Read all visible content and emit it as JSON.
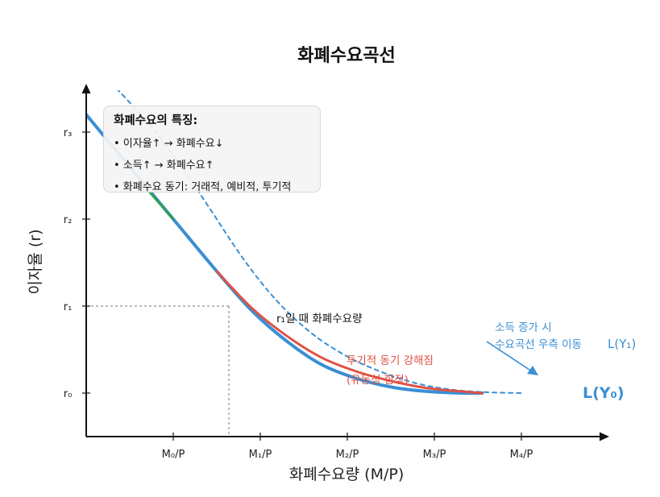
{
  "chart_data": {
    "type": "line",
    "title": "화폐수요곡선",
    "xlabel": "화폐수요량 (M/P)",
    "ylabel": "이자율 (r)",
    "x_ticks": [
      "M₀/P",
      "M₁/P",
      "M₂/P",
      "M₃/P",
      "M₄/P"
    ],
    "y_ticks": [
      "r₀",
      "r₁",
      "r₂",
      "r₃"
    ],
    "xlim": [
      0,
      5.0
    ],
    "ylim": [
      -0.5,
      3.5
    ],
    "series": [
      {
        "name": "L(Y₀)",
        "color": "#3a8fd4",
        "style": "solid",
        "points": [
          [
            -0.25,
            3.5
          ],
          [
            0.5,
            2.6
          ],
          [
            1.0,
            2.0
          ],
          [
            1.5,
            1.4
          ],
          [
            1.9,
            0.95
          ],
          [
            2.3,
            0.6
          ],
          [
            2.7,
            0.33
          ],
          [
            3.1,
            0.17
          ],
          [
            3.5,
            0.07
          ],
          [
            3.9,
            0.02
          ],
          [
            4.3,
            0.0
          ],
          [
            4.55,
            0.0
          ]
        ]
      },
      {
        "name": "L(Y₁)",
        "color": "#3a8fd4",
        "style": "dashed",
        "points": [
          [
            0.35,
            3.5
          ],
          [
            0.8,
            3.0
          ],
          [
            1.3,
            2.3
          ],
          [
            1.8,
            1.55
          ],
          [
            2.2,
            1.05
          ],
          [
            2.6,
            0.68
          ],
          [
            3.0,
            0.42
          ],
          [
            3.4,
            0.24
          ],
          [
            3.8,
            0.11
          ],
          [
            4.2,
            0.04
          ],
          [
            4.6,
            0.01
          ],
          [
            5.0,
            0.0
          ]
        ]
      },
      {
        "name": "투기적 동기 강해짐",
        "color": "#e05244",
        "style": "solid",
        "points": [
          [
            1.5,
            1.4
          ],
          [
            1.9,
            0.98
          ],
          [
            2.3,
            0.66
          ],
          [
            2.7,
            0.41
          ],
          [
            3.1,
            0.25
          ],
          [
            3.5,
            0.14
          ],
          [
            3.9,
            0.06
          ],
          [
            4.3,
            0.02
          ],
          [
            4.55,
            0.0
          ]
        ]
      },
      {
        "name": "green-segment",
        "color": "#2f9e52",
        "style": "solid",
        "points": [
          [
            0.72,
            2.32
          ],
          [
            1.0,
            2.0
          ]
        ]
      }
    ],
    "ref_point": {
      "x": 1.5,
      "y": 1.0,
      "label": "r₁일 때 화폐수요량"
    }
  },
  "annotations": {
    "spec_label": "투기적 동기 강해짐",
    "spec_label2": "(유동성 함정)",
    "shift_line1": "소득 증가 시",
    "shift_line2": "수요곡선 우측 이동",
    "ly1": "L(Y₁)",
    "ly0": "L(Y₀)"
  },
  "legend": {
    "title": "화폐수요의 특징:",
    "items": [
      "• 이자율↑ → 화폐수요↓",
      "• 소득↑ → 화폐수요↑",
      "• 화폐수요 동기: 거래적, 예비적, 투기적"
    ]
  },
  "colors": {
    "blue": "#3a8fd4",
    "red": "#e05244",
    "green": "#2f9e52",
    "axis": "#111111",
    "ref": "#777777"
  }
}
